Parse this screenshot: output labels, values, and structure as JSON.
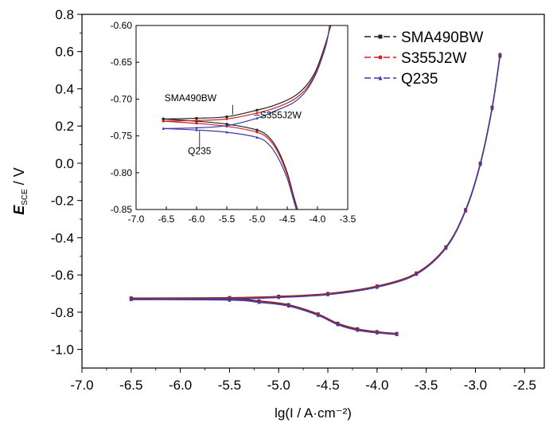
{
  "chart_data": [
    {
      "type": "line",
      "xlabel": "lg(I / A·cm⁻²)",
      "ylabel": "E_SCE / V",
      "ylabel_main": "E",
      "ylabel_sub": "SCE",
      "ylabel_unit": " / V",
      "xlim": [
        -7.0,
        -2.3
      ],
      "ylim": [
        -1.1,
        0.8
      ],
      "xticks": [
        "-7.0",
        "-6.5",
        "-6.0",
        "-5.5",
        "-5.0",
        "-4.5",
        "-4.0",
        "-3.5",
        "-3.0",
        "-2.5"
      ],
      "yticks": [
        "0.8",
        "0.6",
        "0.4",
        "0.2",
        "0.0",
        "-0.2",
        "-0.4",
        "-0.6",
        "-0.8",
        "-1.0"
      ],
      "legend_position": "top-right",
      "series": [
        {
          "name": "SMA490BW",
          "color": "#222222",
          "marker": "square",
          "anodic": [
            [
              -6.5,
              -0.725
            ],
            [
              -5.5,
              -0.722
            ],
            [
              -5.0,
              -0.715
            ],
            [
              -4.5,
              -0.7
            ],
            [
              -4.0,
              -0.66
            ],
            [
              -3.6,
              -0.59
            ],
            [
              -3.3,
              -0.45
            ],
            [
              -3.1,
              -0.25
            ],
            [
              -2.95,
              0.0
            ],
            [
              -2.83,
              0.3
            ],
            [
              -2.75,
              0.58
            ]
          ],
          "cathodic": [
            [
              -6.5,
              -0.725
            ],
            [
              -5.5,
              -0.728
            ],
            [
              -5.2,
              -0.74
            ],
            [
              -4.9,
              -0.76
            ],
            [
              -4.6,
              -0.81
            ],
            [
              -4.4,
              -0.86
            ],
            [
              -4.2,
              -0.89
            ],
            [
              -4.0,
              -0.905
            ],
            [
              -3.8,
              -0.915
            ]
          ]
        },
        {
          "name": "S355J2W",
          "color": "#d02020",
          "marker": "circle",
          "anodic": [
            [
              -6.5,
              -0.728
            ],
            [
              -5.5,
              -0.724
            ],
            [
              -5.0,
              -0.717
            ],
            [
              -4.5,
              -0.702
            ],
            [
              -4.0,
              -0.662
            ],
            [
              -3.6,
              -0.592
            ],
            [
              -3.3,
              -0.452
            ],
            [
              -3.1,
              -0.252
            ],
            [
              -2.95,
              -0.002
            ],
            [
              -2.83,
              0.298
            ],
            [
              -2.75,
              0.585
            ]
          ],
          "cathodic": [
            [
              -6.5,
              -0.728
            ],
            [
              -5.5,
              -0.731
            ],
            [
              -5.2,
              -0.743
            ],
            [
              -4.9,
              -0.763
            ],
            [
              -4.6,
              -0.813
            ],
            [
              -4.4,
              -0.863
            ],
            [
              -4.2,
              -0.893
            ],
            [
              -4.0,
              -0.907
            ],
            [
              -3.8,
              -0.917
            ]
          ]
        },
        {
          "name": "Q235",
          "color": "#3a3aa8",
          "marker": "triangle",
          "anodic": [
            [
              -6.5,
              -0.732
            ],
            [
              -5.5,
              -0.729
            ],
            [
              -5.0,
              -0.721
            ],
            [
              -4.5,
              -0.706
            ],
            [
              -4.0,
              -0.666
            ],
            [
              -3.6,
              -0.596
            ],
            [
              -3.3,
              -0.456
            ],
            [
              -3.1,
              -0.256
            ],
            [
              -2.95,
              -0.006
            ],
            [
              -2.83,
              0.294
            ],
            [
              -2.75,
              0.575
            ]
          ],
          "cathodic": [
            [
              -6.5,
              -0.732
            ],
            [
              -5.5,
              -0.735
            ],
            [
              -5.2,
              -0.747
            ],
            [
              -4.9,
              -0.767
            ],
            [
              -4.6,
              -0.817
            ],
            [
              -4.4,
              -0.867
            ],
            [
              -4.2,
              -0.897
            ],
            [
              -4.0,
              -0.911
            ],
            [
              -3.8,
              -0.92
            ]
          ]
        }
      ]
    },
    {
      "type": "line",
      "role": "inset",
      "xlim": [
        -7.0,
        -3.5
      ],
      "ylim": [
        -0.85,
        -0.6
      ],
      "xticks": [
        "-7.0",
        "-6.5",
        "-6.0",
        "-5.5",
        "-5.0",
        "-4.5",
        "-4.0",
        "-3.5"
      ],
      "yticks": [
        "-0.60",
        "-0.65",
        "-0.70",
        "-0.75",
        "-0.80",
        "-0.85"
      ],
      "annotations": [
        {
          "text": "SMA490BW",
          "x": -5.4,
          "y": -0.715
        },
        {
          "text": "S355J2W",
          "x": -4.7,
          "y": -0.722
        },
        {
          "text": "Q235",
          "x": -5.8,
          "y": -0.748
        }
      ],
      "series": [
        {
          "name": "SMA490BW",
          "color": "#222222",
          "anodic": [
            [
              -6.55,
              -0.727
            ],
            [
              -6.0,
              -0.726
            ],
            [
              -5.5,
              -0.724
            ],
            [
              -5.0,
              -0.715
            ],
            [
              -4.7,
              -0.708
            ],
            [
              -4.4,
              -0.697
            ],
            [
              -4.2,
              -0.683
            ],
            [
              -4.05,
              -0.665
            ],
            [
              -3.95,
              -0.645
            ],
            [
              -3.85,
              -0.62
            ],
            [
              -3.78,
              -0.6
            ]
          ],
          "cathodic": [
            [
              -6.55,
              -0.727
            ],
            [
              -6.0,
              -0.73
            ],
            [
              -5.5,
              -0.734
            ],
            [
              -5.0,
              -0.742
            ],
            [
              -4.8,
              -0.752
            ],
            [
              -4.65,
              -0.77
            ],
            [
              -4.5,
              -0.8
            ],
            [
              -4.4,
              -0.83
            ],
            [
              -4.33,
              -0.85
            ]
          ]
        },
        {
          "name": "S355J2W",
          "color": "#d02020",
          "anodic": [
            [
              -6.55,
              -0.73
            ],
            [
              -6.0,
              -0.729
            ],
            [
              -5.5,
              -0.727
            ],
            [
              -5.0,
              -0.719
            ],
            [
              -4.7,
              -0.712
            ],
            [
              -4.4,
              -0.701
            ],
            [
              -4.2,
              -0.687
            ],
            [
              -4.05,
              -0.668
            ],
            [
              -3.95,
              -0.648
            ],
            [
              -3.85,
              -0.622
            ],
            [
              -3.79,
              -0.6
            ]
          ],
          "cathodic": [
            [
              -6.55,
              -0.73
            ],
            [
              -6.0,
              -0.733
            ],
            [
              -5.5,
              -0.737
            ],
            [
              -5.0,
              -0.745
            ],
            [
              -4.8,
              -0.755
            ],
            [
              -4.65,
              -0.773
            ],
            [
              -4.5,
              -0.803
            ],
            [
              -4.4,
              -0.833
            ],
            [
              -4.34,
              -0.85
            ]
          ]
        },
        {
          "name": "Q235",
          "color": "#3a3aa8",
          "anodic": [
            [
              -6.55,
              -0.74
            ],
            [
              -6.0,
              -0.739
            ],
            [
              -5.5,
              -0.736
            ],
            [
              -5.0,
              -0.726
            ],
            [
              -4.7,
              -0.716
            ],
            [
              -4.4,
              -0.705
            ],
            [
              -4.2,
              -0.69
            ],
            [
              -4.05,
              -0.67
            ],
            [
              -3.95,
              -0.65
            ],
            [
              -3.85,
              -0.624
            ],
            [
              -3.8,
              -0.6
            ]
          ],
          "cathodic": [
            [
              -6.55,
              -0.74
            ],
            [
              -6.0,
              -0.742
            ],
            [
              -5.5,
              -0.745
            ],
            [
              -5.0,
              -0.752
            ],
            [
              -4.8,
              -0.762
            ],
            [
              -4.65,
              -0.78
            ],
            [
              -4.5,
              -0.808
            ],
            [
              -4.4,
              -0.836
            ],
            [
              -4.35,
              -0.85
            ]
          ]
        }
      ]
    }
  ]
}
